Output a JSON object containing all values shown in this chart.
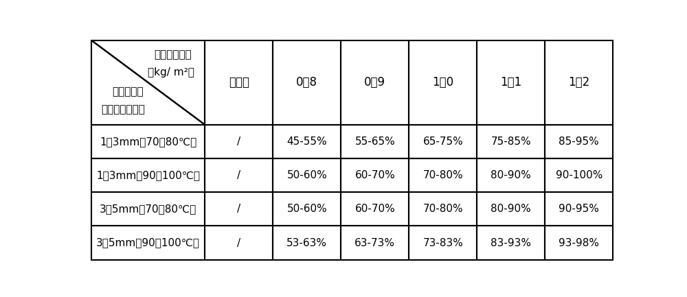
{
  "col_headers": [
    "未洒布",
    "0．8",
    "0．9",
    "1．0",
    "1．1",
    "1．2"
  ],
  "header_line1": "机制沙洒布量",
  "header_line2": "（kg/ m²）",
  "header_line3": "机制沙粒径",
  "header_line4": "范围及加热温度",
  "row_labels": [
    "1～3mm（70～80℃）",
    "1～3mm（90～100℃）",
    "3～5mm（70～80℃）",
    "3～5mm（90～100℃）"
  ],
  "table_data": [
    [
      "/",
      "45-55%",
      "55-65%",
      "65-75%",
      "75-85%",
      "85-95%"
    ],
    [
      "/",
      "50-60%",
      "60-70%",
      "70-80%",
      "80-90%",
      "90-100%"
    ],
    [
      "/",
      "50-60%",
      "60-70%",
      "70-80%",
      "80-90%",
      "90-95%"
    ],
    [
      "/",
      "53-63%",
      "63-73%",
      "73-83%",
      "83-93%",
      "93-98%"
    ]
  ],
  "bg_color": "#ffffff",
  "line_color": "#000000",
  "text_color": "#000000"
}
